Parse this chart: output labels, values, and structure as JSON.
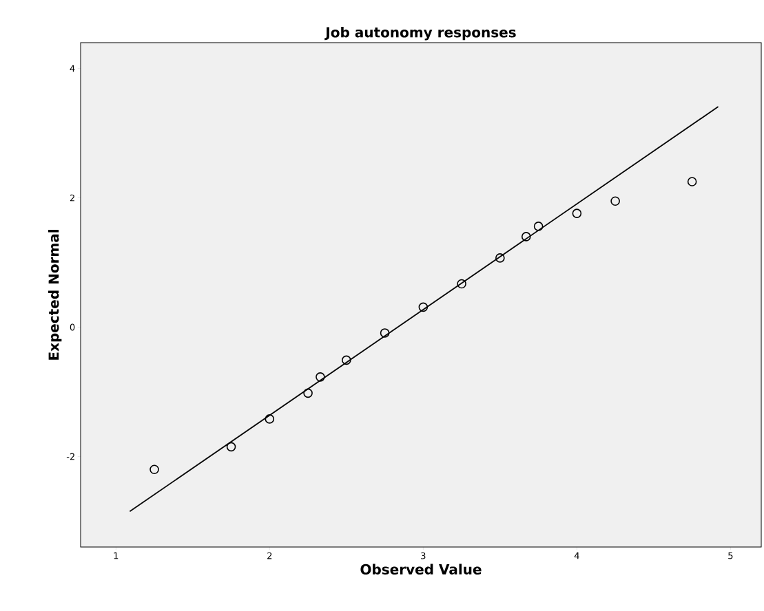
{
  "chart_data": {
    "type": "scatter",
    "title": "Job autonomy responses",
    "xlabel": "Observed Value",
    "ylabel": "Expected Normal",
    "xlim": [
      0.77,
      5.2
    ],
    "ylim": [
      -3.4,
      4.4
    ],
    "xticks": [
      1,
      2,
      3,
      4,
      5
    ],
    "yticks": [
      -2,
      0,
      2,
      4
    ],
    "grid": false,
    "series": [
      {
        "color": "#000000",
        "marker": "circle",
        "x": [
          1.25,
          1.75,
          2.0,
          2.25,
          2.33,
          2.5,
          2.75,
          3.0,
          3.25,
          3.5,
          3.67,
          3.75,
          4.0,
          4.25,
          4.75
        ],
        "values": [
          -2.2,
          -1.85,
          -1.42,
          -1.02,
          -0.77,
          -0.51,
          -0.09,
          0.31,
          0.67,
          1.07,
          1.4,
          1.56,
          1.76,
          1.95,
          2.25
        ]
      },
      {
        "type": "line",
        "color": "#000000",
        "marker": "none",
        "line_style": "solid",
        "x": [
          1.09,
          4.92
        ],
        "values": [
          -2.85,
          3.41
        ]
      }
    ]
  }
}
